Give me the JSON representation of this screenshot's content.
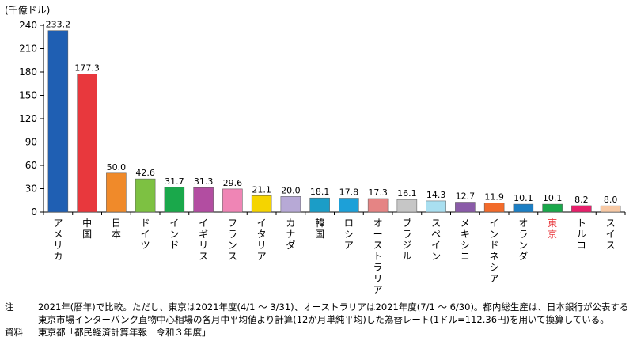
{
  "chart_data": {
    "type": "bar",
    "unit_label": "(千億ドル)",
    "ylim": [
      0,
      240
    ],
    "yticks": [
      0,
      30,
      60,
      90,
      120,
      150,
      180,
      210,
      240
    ],
    "categories": [
      "アメリカ",
      "中国",
      "日本",
      "ドイツ",
      "インド",
      "イギリス",
      "フランス",
      "イタリア",
      "カナダ",
      "韓国",
      "ロシア",
      "オーストラリア",
      "ブラジル",
      "スペイン",
      "メキシコ",
      "インドネシア",
      "オランダ",
      "東京",
      "トルコ",
      "スイス"
    ],
    "values": [
      233.2,
      177.3,
      50.0,
      42.6,
      31.7,
      31.3,
      29.6,
      21.1,
      20.0,
      18.1,
      17.8,
      17.3,
      16.1,
      14.3,
      12.7,
      11.9,
      10.1,
      10.1,
      8.2,
      8.0
    ],
    "value_labels": [
      "233.2",
      "177.3",
      "50.0",
      "42.6",
      "31.7",
      "31.3",
      "29.6",
      "21.1",
      "20.0",
      "18.1",
      "17.8",
      "17.3",
      "16.1",
      "14.3",
      "12.7",
      "11.9",
      "10.1",
      "10.1",
      "8.2",
      "8.0"
    ],
    "colors": [
      "#1f5fb3",
      "#e8383d",
      "#f08a2a",
      "#7dc142",
      "#1aa84b",
      "#b24da1",
      "#ef85b5",
      "#f5d400",
      "#b7a9d6",
      "#1b9dc7",
      "#1da0d8",
      "#e58484",
      "#c6c6c6",
      "#a9dff0",
      "#8a5ba8",
      "#f26b2b",
      "#1d7fc4",
      "#1aa84b",
      "#e6206b",
      "#f7c9a5"
    ],
    "highlight_label_color": "#e8383d",
    "highlight_index": 17,
    "grid": false
  },
  "notes": [
    {
      "key": "注",
      "text": "2021年(暦年)で比較。ただし、東京は2021年度(4/1 ～ 3/31)、オーストラリアは2021年度(7/1 ～ 6/30)。都内総生産は、日本銀行が公表する東京市場インターバンク直物中心相場の各月中平均値より計算(12か月単純平均)した為替レート(1ドル=112.36円)を用いて換算している。"
    },
    {
      "key": "資料",
      "text": "東京都「都民経済計算年報　令和３年度」"
    }
  ]
}
